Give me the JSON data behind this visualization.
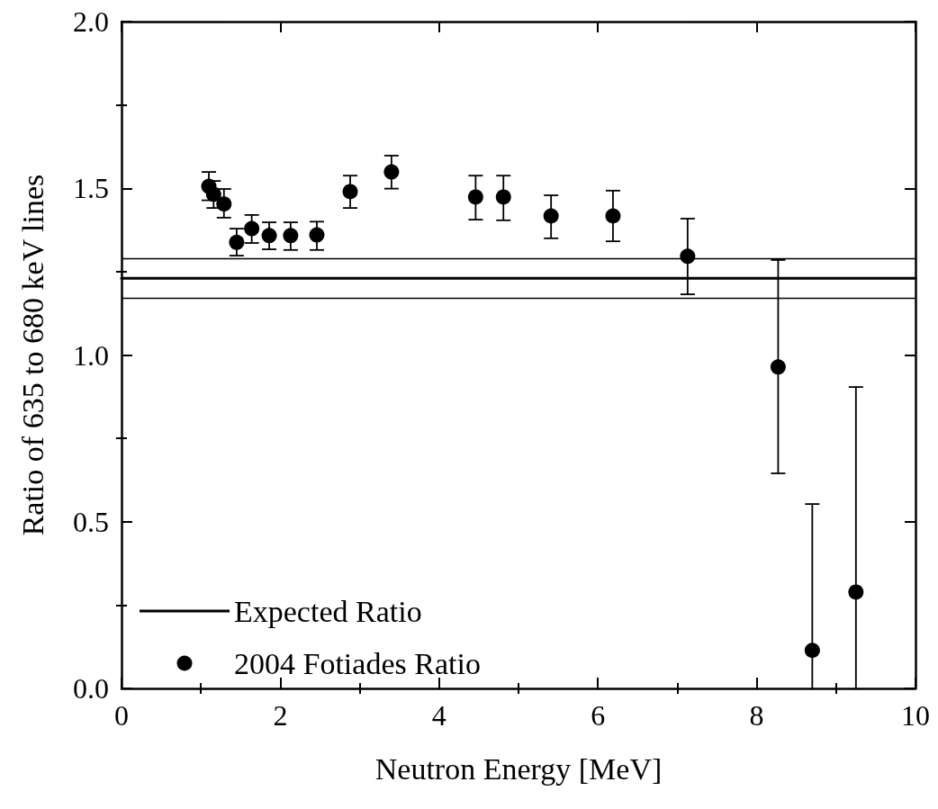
{
  "chart_data": {
    "type": "scatter",
    "xlabel": "Neutron Energy [MeV]",
    "ylabel": "Ratio of 635 to 680 keV lines",
    "xlim": [
      0,
      10
    ],
    "ylim": [
      0,
      2.0
    ],
    "xticks": [
      0,
      {
        "value": 1,
        "label": null
      },
      2,
      {
        "value": 3,
        "label": null
      },
      4,
      {
        "value": 5,
        "label": null
      },
      6,
      {
        "value": 7,
        "label": null
      },
      8,
      {
        "value": 9,
        "label": null
      },
      10
    ],
    "yticks": [
      {
        "value": 0,
        "label": "0.0"
      },
      {
        "value": 0.25,
        "label": null
      },
      {
        "value": 0.5,
        "label": "0.5"
      },
      {
        "value": 0.75,
        "label": null
      },
      {
        "value": 1.0,
        "label": "1.0"
      },
      {
        "value": 1.25,
        "label": null
      },
      {
        "value": 1.5,
        "label": "1.5"
      },
      {
        "value": 1.75,
        "label": null
      },
      {
        "value": 2.0,
        "label": "2.0"
      }
    ],
    "grid": false,
    "legend": "bottom left",
    "marker": "circle",
    "ref_lines": [
      {
        "axis": "y",
        "value": 1.29,
        "color": "#000000",
        "line_style": "solid"
      },
      {
        "axis": "y",
        "value": 1.17,
        "color": "#000000",
        "line_style": "solid"
      }
    ],
    "series": [
      {
        "name": "Expected Ratio",
        "type": "line",
        "color": "#000000",
        "marker": "none",
        "line_style": "solid",
        "x": [
          0,
          10
        ],
        "values": [
          1.23,
          1.23
        ]
      },
      {
        "name": "2004 Fotiades Ratio",
        "color": "#000000",
        "x": [
          1.1,
          1.16,
          1.29,
          1.45,
          1.64,
          1.86,
          2.13,
          2.46,
          2.88,
          3.4,
          4.46,
          4.81,
          5.41,
          6.19,
          7.13,
          8.27,
          8.7,
          9.25
        ],
        "values": [
          1.506,
          1.482,
          1.453,
          1.338,
          1.379,
          1.358,
          1.358,
          1.36,
          1.49,
          1.549,
          1.474,
          1.474,
          1.417,
          1.417,
          1.296,
          0.964,
          0.114,
          0.289
        ],
        "errors": [
          [
            1.464,
            1.549
          ],
          [
            1.441,
            1.522
          ],
          [
            1.412,
            1.498
          ],
          [
            1.298,
            1.379
          ],
          [
            1.336,
            1.42
          ],
          [
            1.317,
            1.398
          ],
          [
            1.315,
            1.398
          ],
          [
            1.315,
            1.4
          ],
          [
            1.441,
            1.538
          ],
          [
            1.499,
            1.598
          ],
          [
            1.406,
            1.538
          ],
          [
            1.404,
            1.538
          ],
          [
            1.35,
            1.479
          ],
          [
            1.341,
            1.493
          ],
          [
            1.182,
            1.409
          ],
          [
            0.645,
            1.285
          ],
          [
            0,
            0.553
          ],
          [
            0,
            0.904
          ]
        ]
      }
    ]
  }
}
